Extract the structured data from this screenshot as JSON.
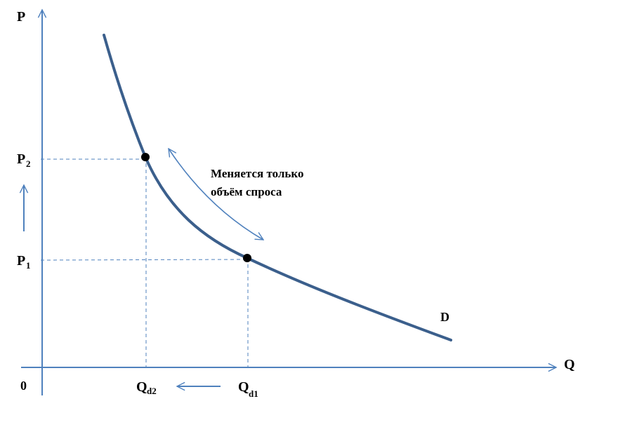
{
  "colors": {
    "axis": "#4f81bd",
    "curve": "#3b5f8c",
    "guide": "#4f81bd",
    "point": "#000000",
    "text": "#000000"
  },
  "axes": {
    "y_label": "P",
    "x_label": "Q",
    "origin": "0"
  },
  "price_labels": {
    "p2_main": "P",
    "p2_sub": "2",
    "p1_main": "P",
    "p1_sub": "1"
  },
  "quantity_labels": {
    "qd2_main": "Q",
    "qd2_sub": "d2",
    "qd1_main": "Q",
    "qd1_sub": "d1"
  },
  "curve_label": "D",
  "annotation": {
    "line1": "Меняется только",
    "line2": "объём спроса"
  },
  "icons": {
    "price_change": "arrow-up-icon",
    "quantity_change": "arrow-left-icon",
    "movement_along_curve": "double-arrow-icon"
  }
}
